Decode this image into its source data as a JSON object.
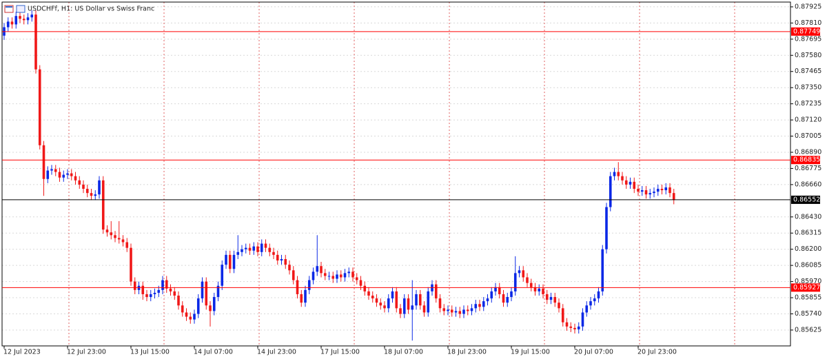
{
  "chart_data": {
    "type": "candlestick",
    "title": "USDCHFf, H1:  US Dollar vs Swiss Franc",
    "categories": [
      "12 Jul 2023",
      null,
      null,
      null,
      null,
      null,
      null,
      null,
      null,
      null,
      null,
      null,
      null,
      null,
      null,
      null,
      "12 Jul 23:00",
      null,
      null,
      null,
      null,
      null,
      null,
      null,
      null,
      null,
      null,
      null,
      null,
      null,
      null,
      null,
      "13 Jul 15:00",
      null,
      null,
      null,
      null,
      null,
      null,
      null,
      null,
      null,
      null,
      null,
      null,
      null,
      null,
      null,
      "14 Jul 07:00",
      null,
      null,
      null,
      null,
      null,
      null,
      null,
      null,
      null,
      null,
      null,
      null,
      null,
      null,
      null,
      "14 Jul 23:00",
      null,
      null,
      null,
      null,
      null,
      null,
      null,
      null,
      null,
      null,
      null,
      null,
      null,
      null,
      null,
      "17 Jul 15:00",
      null,
      null,
      null,
      null,
      null,
      null,
      null,
      null,
      null,
      null,
      null,
      null,
      null,
      null,
      null,
      "18 Jul 07:00",
      null,
      null,
      null,
      null,
      null,
      null,
      null,
      null,
      null,
      null,
      null,
      null,
      null,
      null,
      null,
      "18 Jul 23:00",
      null,
      null,
      null,
      null,
      null,
      null,
      null,
      null,
      null,
      null,
      null,
      null,
      null,
      null,
      null,
      "19 Jul 15:00",
      null,
      null,
      null,
      null,
      null,
      null,
      null,
      null,
      null,
      null,
      null,
      null,
      null,
      null,
      null,
      "20 Jul 07:00",
      null,
      null,
      null,
      null,
      null,
      null,
      null,
      null,
      null,
      null,
      null,
      null,
      null,
      null,
      null,
      "20 Jul 23:00",
      null,
      null,
      null,
      null,
      null,
      null,
      null,
      null,
      null
    ],
    "open": [
      0.8772,
      0.8778,
      0.8782,
      0.878,
      0.8786,
      0.8784,
      0.8783,
      0.8785,
      0.8787,
      0.8748,
      0.8694,
      0.867,
      0.8676,
      0.8677,
      0.8675,
      0.8671,
      0.8673,
      0.8674,
      0.8672,
      0.8669,
      0.8666,
      0.8663,
      0.866,
      0.8658,
      0.8659,
      0.8669,
      0.8634,
      0.8632,
      0.863,
      0.8628,
      0.8627,
      0.8625,
      0.8621,
      0.8597,
      0.8591,
      0.8594,
      0.8588,
      0.8586,
      0.8588,
      0.8589,
      0.8591,
      0.8598,
      0.8592,
      0.859,
      0.8587,
      0.858,
      0.8575,
      0.8572,
      0.857,
      0.8574,
      0.8585,
      0.8597,
      0.858,
      0.8576,
      0.8586,
      0.8594,
      0.8609,
      0.8616,
      0.8606,
      0.8616,
      0.8618,
      0.862,
      0.8621,
      0.8619,
      0.8622,
      0.8618,
      0.8624,
      0.8621,
      0.8618,
      0.8616,
      0.8612,
      0.8613,
      0.8609,
      0.8605,
      0.8598,
      0.8588,
      0.8582,
      0.8591,
      0.8598,
      0.8604,
      0.8608,
      0.8603,
      0.8601,
      0.8601,
      0.8599,
      0.8602,
      0.86,
      0.8603,
      0.8604,
      0.86,
      0.8598,
      0.8594,
      0.859,
      0.8587,
      0.8585,
      0.8582,
      0.858,
      0.8578,
      0.8585,
      0.859,
      0.8578,
      0.8574,
      0.8585,
      0.8577,
      0.858,
      0.8588,
      0.858,
      0.8575,
      0.859,
      0.8595,
      0.8585,
      0.8578,
      0.8576,
      0.8577,
      0.8575,
      0.8576,
      0.8574,
      0.8577,
      0.8576,
      0.8578,
      0.8581,
      0.8579,
      0.8583,
      0.8585,
      0.859,
      0.8593,
      0.8588,
      0.8582,
      0.8586,
      0.859,
      0.8603,
      0.8605,
      0.86,
      0.8596,
      0.8593,
      0.859,
      0.8592,
      0.8588,
      0.8584,
      0.8586,
      0.8582,
      0.8578,
      0.8568,
      0.8565,
      0.8564,
      0.8563,
      0.8565,
      0.8575,
      0.858,
      0.8583,
      0.8585,
      0.859,
      0.862,
      0.865,
      0.8672,
      0.8675,
      0.8672,
      0.8669,
      0.8666,
      0.8668,
      0.8663,
      0.8661,
      0.8662,
      0.8659,
      0.866,
      0.8661,
      0.8663,
      0.8662,
      0.8664,
      0.866
    ],
    "high": [
      0.8781,
      0.8785,
      0.8785,
      0.8789,
      0.8789,
      0.8787,
      0.8788,
      0.879,
      0.879,
      0.8751,
      0.8697,
      0.8679,
      0.868,
      0.868,
      0.8678,
      0.8676,
      0.8677,
      0.8677,
      0.8675,
      0.8672,
      0.8669,
      0.8666,
      0.8663,
      0.8662,
      0.8672,
      0.8672,
      0.8637,
      0.864,
      0.8633,
      0.864,
      0.863,
      0.8628,
      0.8624,
      0.86,
      0.8597,
      0.8597,
      0.8591,
      0.8591,
      0.8592,
      0.8594,
      0.8601,
      0.8601,
      0.8595,
      0.8593,
      0.859,
      0.8583,
      0.8578,
      0.8575,
      0.8577,
      0.8588,
      0.86,
      0.86,
      0.8583,
      0.8589,
      0.8597,
      0.8612,
      0.8619,
      0.8619,
      0.8619,
      0.863,
      0.8623,
      0.8624,
      0.8624,
      0.8625,
      0.8625,
      0.8627,
      0.8627,
      0.8624,
      0.8621,
      0.8619,
      0.8616,
      0.8616,
      0.8612,
      0.8608,
      0.8601,
      0.8591,
      0.8594,
      0.8601,
      0.8607,
      0.863,
      0.8611,
      0.8606,
      0.8604,
      0.8604,
      0.8605,
      0.8605,
      0.8606,
      0.8607,
      0.8607,
      0.8603,
      0.8601,
      0.8597,
      0.8593,
      0.859,
      0.8588,
      0.8585,
      0.8583,
      0.8588,
      0.8593,
      0.8593,
      0.8581,
      0.8588,
      0.8588,
      0.8598,
      0.8591,
      0.8591,
      0.8583,
      0.8593,
      0.8598,
      0.8598,
      0.8588,
      0.8581,
      0.858,
      0.858,
      0.8579,
      0.8579,
      0.858,
      0.858,
      0.8581,
      0.8584,
      0.8584,
      0.8586,
      0.8588,
      0.8593,
      0.8596,
      0.8596,
      0.8591,
      0.8589,
      0.8593,
      0.8615,
      0.8608,
      0.8608,
      0.8603,
      0.8599,
      0.8596,
      0.8595,
      0.8595,
      0.8591,
      0.8589,
      0.8589,
      0.8585,
      0.8581,
      0.8571,
      0.8568,
      0.8567,
      0.8568,
      0.8578,
      0.8583,
      0.8586,
      0.8588,
      0.8593,
      0.8623,
      0.8653,
      0.8675,
      0.8678,
      0.8682,
      0.8675,
      0.8672,
      0.8671,
      0.8671,
      0.8666,
      0.8665,
      0.8665,
      0.8663,
      0.8664,
      0.8666,
      0.8666,
      0.8667,
      0.8667,
      0.8663
    ],
    "low": [
      0.8769,
      0.8775,
      0.8777,
      0.8777,
      0.8781,
      0.878,
      0.878,
      0.8782,
      0.8745,
      0.8691,
      0.8658,
      0.8667,
      0.8673,
      0.8672,
      0.8668,
      0.8668,
      0.867,
      0.8669,
      0.8666,
      0.8663,
      0.866,
      0.8657,
      0.8655,
      0.8655,
      0.8656,
      0.8631,
      0.8629,
      0.8627,
      0.8625,
      0.8624,
      0.8622,
      0.8618,
      0.8594,
      0.8588,
      0.8588,
      0.8584,
      0.8583,
      0.8583,
      0.8585,
      0.8586,
      0.8588,
      0.8589,
      0.8587,
      0.8584,
      0.8577,
      0.8572,
      0.8569,
      0.8567,
      0.8567,
      0.8571,
      0.8582,
      0.8577,
      0.8565,
      0.8573,
      0.8583,
      0.8591,
      0.8606,
      0.8603,
      0.8603,
      0.8613,
      0.8615,
      0.8617,
      0.8616,
      0.8616,
      0.8615,
      0.8615,
      0.8618,
      0.8615,
      0.8613,
      0.8609,
      0.8609,
      0.8606,
      0.8602,
      0.8595,
      0.8585,
      0.8579,
      0.8579,
      0.8588,
      0.8595,
      0.8601,
      0.86,
      0.8598,
      0.8598,
      0.8596,
      0.8596,
      0.8597,
      0.8597,
      0.86,
      0.8597,
      0.8595,
      0.8591,
      0.8587,
      0.8584,
      0.8582,
      0.8579,
      0.8577,
      0.8575,
      0.8575,
      0.8582,
      0.8575,
      0.8571,
      0.8571,
      0.8574,
      0.8555,
      0.8577,
      0.8577,
      0.8572,
      0.8572,
      0.8587,
      0.8582,
      0.8575,
      0.8573,
      0.8573,
      0.8572,
      0.8572,
      0.8571,
      0.8571,
      0.8573,
      0.8573,
      0.8575,
      0.8576,
      0.8576,
      0.858,
      0.8582,
      0.8587,
      0.8585,
      0.8579,
      0.8579,
      0.8583,
      0.8587,
      0.86,
      0.8597,
      0.8593,
      0.859,
      0.8587,
      0.8587,
      0.8585,
      0.8581,
      0.8581,
      0.8579,
      0.8575,
      0.8565,
      0.8562,
      0.8561,
      0.856,
      0.856,
      0.8562,
      0.8572,
      0.8577,
      0.858,
      0.8582,
      0.8587,
      0.8617,
      0.8647,
      0.8669,
      0.8669,
      0.8666,
      0.8663,
      0.8663,
      0.866,
      0.8658,
      0.8658,
      0.8656,
      0.8656,
      0.8657,
      0.8658,
      0.8659,
      0.8659,
      0.8657,
      0.8652
    ],
    "close": [
      0.8778,
      0.8782,
      0.878,
      0.8786,
      0.8784,
      0.8783,
      0.8785,
      0.8787,
      0.8748,
      0.8694,
      0.867,
      0.8676,
      0.8677,
      0.8675,
      0.8671,
      0.8673,
      0.8674,
      0.8672,
      0.8669,
      0.8666,
      0.8663,
      0.866,
      0.8658,
      0.8659,
      0.8669,
      0.8634,
      0.8632,
      0.863,
      0.8628,
      0.8627,
      0.8625,
      0.8621,
      0.8597,
      0.8591,
      0.8594,
      0.8588,
      0.8586,
      0.8588,
      0.8589,
      0.8591,
      0.8598,
      0.8592,
      0.859,
      0.8587,
      0.858,
      0.8575,
      0.8572,
      0.857,
      0.8574,
      0.8585,
      0.8597,
      0.858,
      0.8576,
      0.8586,
      0.8594,
      0.8609,
      0.8616,
      0.8606,
      0.8616,
      0.8618,
      0.862,
      0.8621,
      0.8619,
      0.8622,
      0.8618,
      0.8624,
      0.8621,
      0.8618,
      0.8616,
      0.8612,
      0.8613,
      0.8609,
      0.8605,
      0.8598,
      0.8588,
      0.8582,
      0.8591,
      0.8598,
      0.8604,
      0.8608,
      0.8603,
      0.8601,
      0.8601,
      0.8599,
      0.8602,
      0.86,
      0.8603,
      0.8604,
      0.86,
      0.8598,
      0.8594,
      0.859,
      0.8587,
      0.8585,
      0.8582,
      0.858,
      0.8578,
      0.8585,
      0.859,
      0.8578,
      0.8574,
      0.8585,
      0.8577,
      0.858,
      0.8588,
      0.858,
      0.8575,
      0.859,
      0.8595,
      0.8585,
      0.8578,
      0.8576,
      0.8577,
      0.8575,
      0.8576,
      0.8574,
      0.8577,
      0.8576,
      0.8578,
      0.8581,
      0.8579,
      0.8583,
      0.8585,
      0.859,
      0.8593,
      0.8588,
      0.8582,
      0.8586,
      0.859,
      0.8603,
      0.8605,
      0.86,
      0.8596,
      0.8593,
      0.859,
      0.8592,
      0.8588,
      0.8584,
      0.8586,
      0.8582,
      0.8578,
      0.8568,
      0.8565,
      0.8564,
      0.8563,
      0.8565,
      0.8575,
      0.858,
      0.8583,
      0.8585,
      0.859,
      0.862,
      0.865,
      0.8672,
      0.8675,
      0.8672,
      0.8669,
      0.8666,
      0.8668,
      0.8663,
      0.8661,
      0.8662,
      0.8659,
      0.866,
      0.8661,
      0.8663,
      0.8662,
      0.8664,
      0.866,
      0.8655
    ],
    "up_color": "#0a28e6",
    "down_color": "#f01818",
    "ylim": [
      0.85512,
      0.87959
    ],
    "yticks": [
      0.87925,
      {
        "value": 0.8781,
        "label": "0.87810"
      },
      0.87695,
      {
        "value": 0.8758,
        "label": "0.87580"
      },
      0.87465,
      {
        "value": 0.8735,
        "label": "0.87350"
      },
      0.87235,
      {
        "value": 0.8712,
        "label": "0.87120"
      },
      0.87005,
      {
        "value": 0.8689,
        "label": "0.86890"
      },
      0.86775,
      {
        "value": 0.8666,
        "label": "0.86660"
      },
      {
        "value": 0.8643,
        "label": "0.86430"
      },
      0.86315,
      {
        "value": 0.862,
        "label": "0.86200"
      },
      0.86085,
      {
        "value": 0.8597,
        "label": "0.85970"
      },
      0.85855,
      {
        "value": 0.8574,
        "label": "0.85740"
      },
      0.85625
    ],
    "levels": [
      {
        "value": 0.87749,
        "color": "#ff0000"
      },
      {
        "value": 0.86835,
        "color": "#ff0000"
      },
      {
        "value": 0.85927,
        "color": "#ff0000"
      },
      {
        "value": 0.86552,
        "color": "#000000"
      }
    ],
    "grid": true
  }
}
